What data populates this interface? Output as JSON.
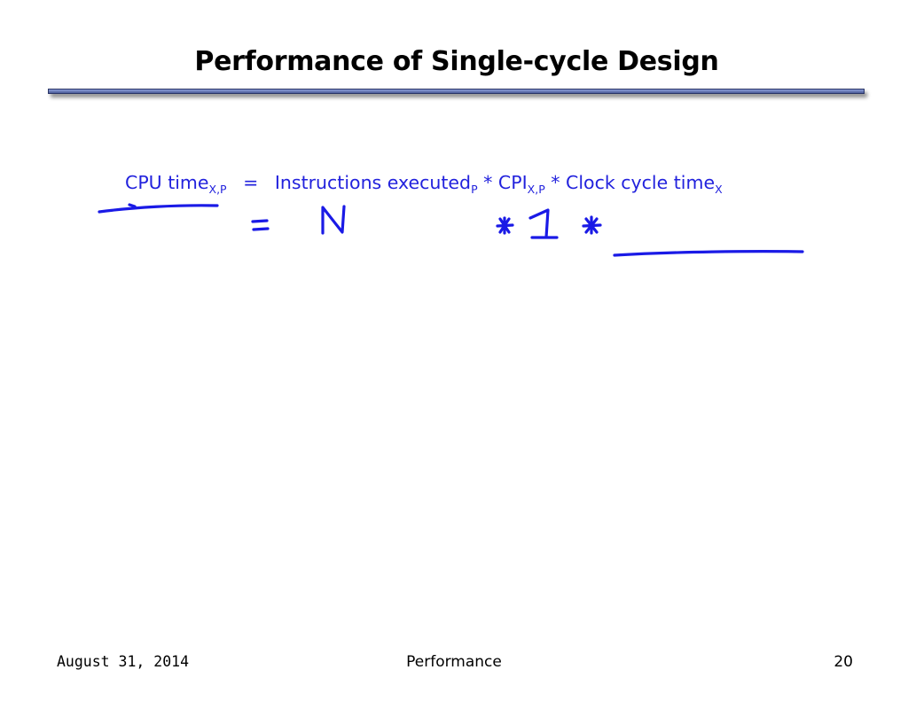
{
  "slide": {
    "title": "Performance of Single-cycle Design"
  },
  "formula": {
    "cpu_time": "CPU time",
    "cpu_time_sub": "X,P",
    "equals": "=",
    "instructions": "Instructions executed",
    "instructions_sub": "P",
    "times1": "*",
    "cpi": "CPI",
    "cpi_sub": "X,P",
    "times2": "*",
    "clock": "Clock cycle time",
    "clock_sub": "X"
  },
  "annotation": {
    "ink_color": "#1a1ae6",
    "symbols": [
      "=",
      "N",
      "*",
      "1",
      "*"
    ]
  },
  "footer": {
    "date": "August 31, 2014",
    "topic": "Performance",
    "page": "20"
  }
}
